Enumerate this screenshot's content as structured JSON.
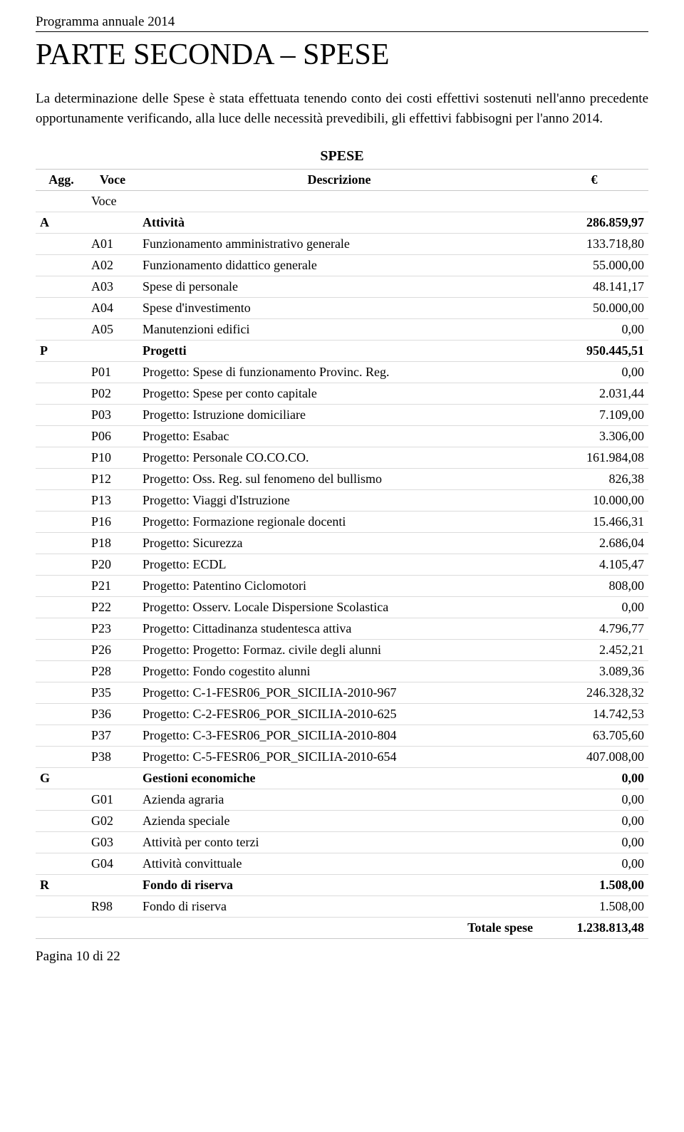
{
  "header": "Programma annuale 2014",
  "title": "PARTE SECONDA – SPESE",
  "intro": "La determinazione delle Spese è stata effettuata tenendo conto dei costi effettivi sostenuti nell'anno precedente opportunamente verificando, alla luce delle necessità prevedibili, gli effettivi fabbisogni per l'anno 2014.",
  "table_caption": "SPESE",
  "columns": {
    "agg": "Agg.",
    "voce": "Voce",
    "desc": "Descrizione",
    "val": "€"
  },
  "subheader": "Voce",
  "rows": [
    {
      "agg": "A",
      "voce": "",
      "desc": "Attività",
      "val": "286.859,97",
      "bold": true
    },
    {
      "agg": "",
      "voce": "A01",
      "desc": "Funzionamento amministrativo generale",
      "val": "133.718,80"
    },
    {
      "agg": "",
      "voce": "A02",
      "desc": "Funzionamento didattico generale",
      "val": "55.000,00"
    },
    {
      "agg": "",
      "voce": "A03",
      "desc": "Spese di personale",
      "val": "48.141,17"
    },
    {
      "agg": "",
      "voce": "A04",
      "desc": "Spese d'investimento",
      "val": "50.000,00"
    },
    {
      "agg": "",
      "voce": "A05",
      "desc": "Manutenzioni edifici",
      "val": "0,00"
    },
    {
      "agg": "P",
      "voce": "",
      "desc": "Progetti",
      "val": "950.445,51",
      "bold": true
    },
    {
      "agg": "",
      "voce": "P01",
      "desc": "Progetto: Spese di funzionamento Provinc. Reg.",
      "val": "0,00"
    },
    {
      "agg": "",
      "voce": "P02",
      "desc": "Progetto: Spese per conto capitale",
      "val": "2.031,44"
    },
    {
      "agg": "",
      "voce": "P03",
      "desc": "Progetto: Istruzione domiciliare",
      "val": "7.109,00"
    },
    {
      "agg": "",
      "voce": "P06",
      "desc": "Progetto: Esabac",
      "val": "3.306,00"
    },
    {
      "agg": "",
      "voce": "P10",
      "desc": "Progetto: Personale CO.CO.CO.",
      "val": "161.984,08"
    },
    {
      "agg": "",
      "voce": "P12",
      "desc": "Progetto: Oss. Reg. sul fenomeno del bullismo",
      "val": "826,38"
    },
    {
      "agg": "",
      "voce": "P13",
      "desc": "Progetto: Viaggi d'Istruzione",
      "val": "10.000,00"
    },
    {
      "agg": "",
      "voce": "P16",
      "desc": "Progetto: Formazione regionale docenti",
      "val": "15.466,31"
    },
    {
      "agg": "",
      "voce": "P18",
      "desc": "Progetto: Sicurezza",
      "val": "2.686,04"
    },
    {
      "agg": "",
      "voce": "P20",
      "desc": "Progetto: ECDL",
      "val": "4.105,47"
    },
    {
      "agg": "",
      "voce": "P21",
      "desc": "Progetto: Patentino Ciclomotori",
      "val": "808,00"
    },
    {
      "agg": "",
      "voce": "P22",
      "desc": "Progetto: Osserv. Locale Dispersione Scolastica",
      "val": "0,00"
    },
    {
      "agg": "",
      "voce": "P23",
      "desc": "Progetto: Cittadinanza studentesca attiva",
      "val": "4.796,77"
    },
    {
      "agg": "",
      "voce": "P26",
      "desc": "Progetto: Progetto: Formaz. civile degli alunni",
      "val": "2.452,21"
    },
    {
      "agg": "",
      "voce": "P28",
      "desc": "Progetto: Fondo cogestito alunni",
      "val": "3.089,36"
    },
    {
      "agg": "",
      "voce": "P35",
      "desc": "Progetto: C-1-FESR06_POR_SICILIA-2010-967",
      "val": "246.328,32"
    },
    {
      "agg": "",
      "voce": "P36",
      "desc": "Progetto: C-2-FESR06_POR_SICILIA-2010-625",
      "val": "14.742,53"
    },
    {
      "agg": "",
      "voce": "P37",
      "desc": "Progetto: C-3-FESR06_POR_SICILIA-2010-804",
      "val": "63.705,60"
    },
    {
      "agg": "",
      "voce": "P38",
      "desc": "Progetto: C-5-FESR06_POR_SICILIA-2010-654",
      "val": "407.008,00"
    },
    {
      "agg": "G",
      "voce": "",
      "desc": "Gestioni economiche",
      "val": "0,00",
      "bold": true
    },
    {
      "agg": "",
      "voce": "G01",
      "desc": "Azienda agraria",
      "val": "0,00"
    },
    {
      "agg": "",
      "voce": "G02",
      "desc": "Azienda speciale",
      "val": "0,00"
    },
    {
      "agg": "",
      "voce": "G03",
      "desc": "Attività per conto terzi",
      "val": "0,00"
    },
    {
      "agg": "",
      "voce": "G04",
      "desc": "Attività convittuale",
      "val": "0,00"
    },
    {
      "agg": "R",
      "voce": "",
      "desc": "Fondo di riserva",
      "val": "1.508,00",
      "bold": true
    },
    {
      "agg": "",
      "voce": "R98",
      "desc": "Fondo di riserva",
      "val": "1.508,00"
    }
  ],
  "total": {
    "label": "Totale spese",
    "value": "1.238.813,48"
  },
  "footer": "Pagina 10 di 22"
}
